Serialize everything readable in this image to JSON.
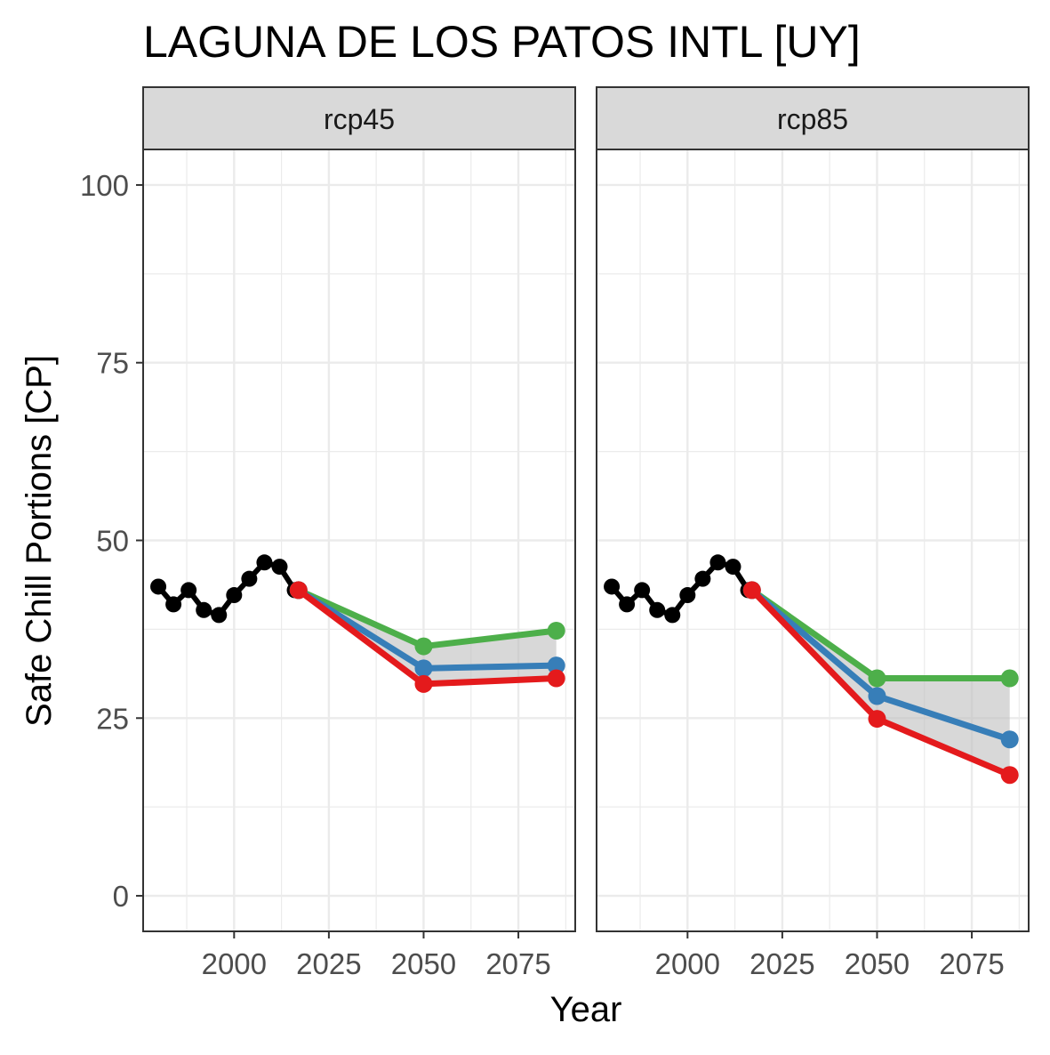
{
  "chart_data": {
    "type": "line",
    "title": "LAGUNA DE LOS PATOS INTL [UY]",
    "xlabel": "Year",
    "ylabel": "Safe Chill Portions [CP]",
    "xlim": [
      1976,
      2090
    ],
    "ylim": [
      -5,
      105
    ],
    "x_ticks": [
      2000,
      2025,
      2050,
      2075
    ],
    "x_minor_ticks": [
      1987.5,
      2012.5,
      2037.5,
      2062.5,
      2087.5
    ],
    "y_ticks": [
      0,
      25,
      50,
      75,
      100
    ],
    "y_minor_ticks": [
      12.5,
      37.5,
      62.5,
      87.5
    ],
    "grid": true,
    "legend": "none",
    "colors": {
      "historical": "#000000",
      "high": "#4DAF4A",
      "mid": "#377EB8",
      "low": "#E41A1C",
      "ribbon": "#BEBEBE",
      "strip_fill": "#D9D9D9",
      "panel_border": "#333333",
      "grid": "#EBEBEB",
      "tick_label": "#4D4D4D"
    },
    "panels": [
      {
        "label": "rcp45",
        "historical": {
          "x": [
            1980,
            1984,
            1988,
            1992,
            1996,
            2000,
            2004,
            2008,
            2012,
            2016
          ],
          "y": [
            43.5,
            41,
            43,
            40.2,
            39.5,
            42.3,
            44.6,
            46.9,
            46.3,
            43
          ]
        },
        "series": [
          {
            "key": "high",
            "x": [
              2017,
              2050,
              2085
            ],
            "y": [
              43,
              35.1,
              37.3
            ]
          },
          {
            "key": "mid",
            "x": [
              2017,
              2050,
              2085
            ],
            "y": [
              43,
              32,
              32.4
            ]
          },
          {
            "key": "low",
            "x": [
              2017,
              2050,
              2085
            ],
            "y": [
              43,
              29.8,
              30.6
            ]
          }
        ]
      },
      {
        "label": "rcp85",
        "historical": {
          "x": [
            1980,
            1984,
            1988,
            1992,
            1996,
            2000,
            2004,
            2008,
            2012,
            2016
          ],
          "y": [
            43.5,
            41,
            43,
            40.2,
            39.5,
            42.3,
            44.6,
            46.9,
            46.3,
            43
          ]
        },
        "series": [
          {
            "key": "high",
            "x": [
              2017,
              2050,
              2085
            ],
            "y": [
              43,
              30.6,
              30.6
            ]
          },
          {
            "key": "mid",
            "x": [
              2017,
              2050,
              2085
            ],
            "y": [
              43,
              28.1,
              22
            ]
          },
          {
            "key": "low",
            "x": [
              2017,
              2050,
              2085
            ],
            "y": [
              43,
              24.9,
              17
            ]
          }
        ]
      }
    ]
  }
}
